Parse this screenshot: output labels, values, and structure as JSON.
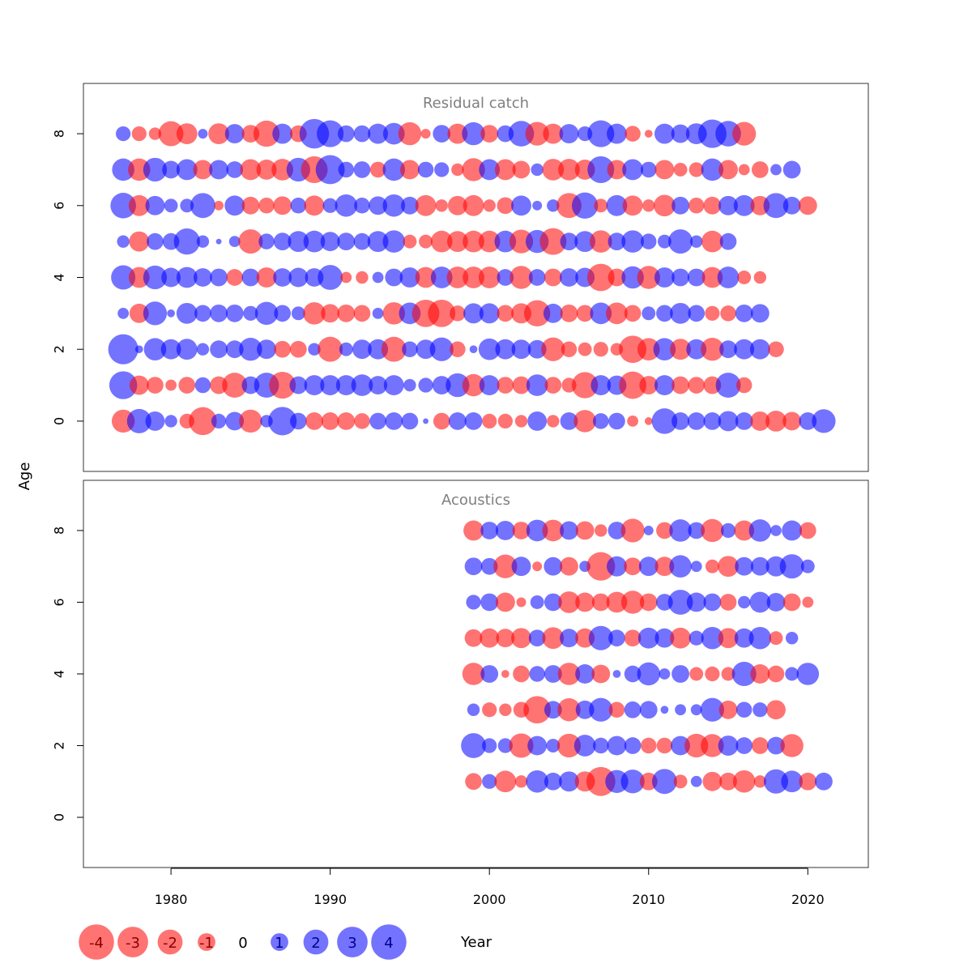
{
  "chart_data": {
    "type": "bubble",
    "ylabel": "Age",
    "xlabel": "Year",
    "x_ticks": [
      1980,
      1990,
      2000,
      2010,
      2020
    ],
    "y_ticks": [
      0,
      2,
      4,
      6,
      8
    ],
    "xlim": [
      1974.5,
      2023.8
    ],
    "ylim": [
      -1.4,
      9.4
    ],
    "colors": {
      "positive": "#0000ff",
      "negative": "#ff0000",
      "border": "#333333"
    },
    "panels": [
      {
        "title": "Residual catch",
        "year_start": 1977,
        "ages": [
          0,
          1,
          2,
          3,
          4,
          5,
          6,
          7,
          8
        ],
        "residuals": [
          [
            -1.7,
            1.9,
            1.2,
            0.5,
            -0.7,
            -2.5,
            0.7,
            1.1,
            -1.7,
            0.5,
            2.6,
            0.9,
            -1.0,
            -1.0,
            -1.0,
            -0.8,
            0.9,
            1.0,
            0.9,
            0.1,
            -0.9,
            1.0,
            1.0,
            -0.7,
            -0.7,
            -0.5,
            1.2,
            -0.5,
            1.0,
            -1.6,
            0.8,
            0.9,
            -0.4,
            -0.2,
            2.1,
            1.0,
            1.0,
            1.0,
            1.3,
            1.0,
            -1.2,
            -1.4,
            -1.1,
            1.0,
            1.8
          ],
          [
            2.5,
            -1.2,
            -0.9,
            -0.4,
            -0.9,
            0.8,
            -1.0,
            -2.0,
            1.0,
            2.0,
            -2.3,
            1.0,
            1.3,
            1.3,
            1.3,
            1.5,
            1.1,
            1.3,
            0.5,
            0.7,
            1.1,
            1.8,
            -1.6,
            1.3,
            -0.9,
            -1.0,
            1.5,
            -0.9,
            -0.7,
            -2.2,
            1.3,
            1.2,
            -2.4,
            -1.1,
            1.3,
            -1.0,
            -0.9,
            -1.0,
            2.0,
            -0.8
          ],
          [
            2.9,
            0.2,
            1.6,
            1.3,
            1.4,
            0.5,
            1.0,
            1.0,
            1.7,
            1.2,
            -0.9,
            -0.9,
            0.5,
            -2.0,
            0.6,
            1.2,
            1.3,
            -2.0,
            0.8,
            1.2,
            1.8,
            -0.8,
            0.2,
            1.5,
            1.3,
            1.2,
            1.1,
            -1.8,
            -0.8,
            -0.6,
            -0.7,
            -0.5,
            -2.4,
            -1.6,
            1.6,
            -1.4,
            1.3,
            -1.7,
            1.0,
            1.3,
            1.3,
            -0.8
          ],
          [
            0.4,
            -1.2,
            1.8,
            0.2,
            1.4,
            0.9,
            1.0,
            1.0,
            0.7,
            1.7,
            0.9,
            0.6,
            -1.6,
            -1.1,
            -1.0,
            -0.9,
            0.4,
            -1.6,
            1.5,
            -2.4,
            -2.4,
            -0.8,
            1.3,
            1.3,
            -0.9,
            -1.3,
            -2.2,
            1.2,
            -1.0,
            -0.9,
            1.5,
            -1.5,
            -0.9,
            0.6,
            0.9,
            1.4,
            0.9,
            -0.7,
            -0.8,
            1.0,
            1.1
          ],
          [
            1.9,
            -1.4,
            1.8,
            1.2,
            1.4,
            1.1,
            1.0,
            -0.9,
            1.0,
            -1.3,
            1.1,
            1.2,
            1.1,
            2.0,
            -0.4,
            -0.5,
            0.4,
            1.0,
            1.3,
            -1.4,
            1.5,
            -1.5,
            -1.5,
            -1.5,
            0.9,
            -1.7,
            0.9,
            -1.0,
            1.1,
            1.2,
            -2.4,
            -1.0,
            1.6,
            -1.7,
            1.3,
            1.0,
            1.0,
            -1.4,
            1.5,
            -0.6,
            -0.5
          ],
          [
            0.5,
            -1.3,
            0.9,
            0.9,
            2.2,
            0.5,
            0.1,
            0.4,
            -1.9,
            0.8,
            1.0,
            1.4,
            1.5,
            1.2,
            1.0,
            0.9,
            1.4,
            1.6,
            -0.6,
            -0.6,
            -1.5,
            -1.4,
            -1.5,
            -1.5,
            1.5,
            -1.8,
            1.7,
            -2.3,
            1.0,
            1.4,
            -1.6,
            1.0,
            1.6,
            0.8,
            0.6,
            1.9,
            0.5,
            -1.5,
            0.9
          ],
          [
            2.1,
            -1.4,
            1.2,
            0.6,
            0.6,
            2.0,
            -0.3,
            1.3,
            -1.0,
            -0.8,
            -1.1,
            0.8,
            -1.3,
            0.7,
            1.6,
            0.8,
            1.1,
            1.6,
            1.0,
            -1.4,
            -0.5,
            -1.2,
            -1.4,
            -0.5,
            -0.9,
            1.3,
            0.3,
            0.5,
            -2.0,
            2.2,
            -0.6,
            1.4,
            -1.3,
            -0.5,
            -1.5,
            1.0,
            -0.8,
            -1.0,
            1.2,
            1.4,
            -1.2,
            2.0,
            1.0,
            -1.1
          ],
          [
            1.6,
            -1.6,
            1.8,
            1.0,
            1.4,
            -1.2,
            1.2,
            0.9,
            -1.4,
            -1.3,
            -1.5,
            1.8,
            -2.3,
            2.7,
            0.8,
            0.9,
            -0.8,
            1.6,
            -1.2,
            0.8,
            0.7,
            -0.5,
            -1.7,
            1.4,
            -1.4,
            -1.0,
            0.5,
            -1.5,
            -1.5,
            -1.3,
            2.3,
            -1.2,
            1.4,
            0.8,
            -1.2,
            -0.6,
            -0.7,
            1.6,
            -1.2,
            -0.4,
            -0.9,
            0.4,
            1.0
          ],
          [
            0.7,
            -0.7,
            -0.5,
            -2.0,
            -1.4,
            0.3,
            -1.4,
            1.2,
            -1.0,
            -2.2,
            1.3,
            -0.9,
            2.8,
            2.3,
            0.9,
            0.9,
            1.3,
            1.5,
            -1.7,
            -0.3,
            1.0,
            -1.3,
            1.7,
            -1.0,
            0.9,
            2.1,
            -1.8,
            -1.3,
            1.2,
            0.7,
            2.3,
            1.3,
            -0.8,
            -0.2,
            1.3,
            1.1,
            1.4,
            2.6,
            2.1,
            -1.8
          ]
        ]
      },
      {
        "title": "Acoustics",
        "year_start": 1999,
        "ages": [
          1,
          2,
          3,
          4,
          5,
          6,
          7,
          8
        ],
        "residuals": [
          [
            -0.9,
            0.7,
            -1.5,
            -0.5,
            1.6,
            1.0,
            1.3,
            -1.3,
            -2.7,
            1.7,
            1.8,
            -1.0,
            2.0,
            -0.6,
            0.4,
            -1.2,
            -1.0,
            -1.6,
            -0.5,
            1.9,
            1.5,
            -1.0,
            1.0
          ],
          [
            2.0,
            0.7,
            0.7,
            -1.9,
            1.2,
            0.6,
            -1.8,
            1.5,
            0.8,
            1.2,
            0.9,
            -0.8,
            -0.8,
            1.2,
            -1.8,
            -1.7,
            1.3,
            0.9,
            -0.9,
            1.0,
            -1.7
          ],
          [
            0.5,
            -0.7,
            -0.5,
            -0.8,
            -2.4,
            1.0,
            -1.7,
            1.1,
            1.8,
            -0.8,
            0.9,
            1.0,
            0.2,
            0.4,
            0.4,
            1.8,
            -1.1,
            0.8,
            0.7,
            -1.2
          ],
          [
            -1.6,
            1.0,
            -0.2,
            -0.9,
            0.8,
            1.0,
            -1.6,
            1.2,
            -1.1,
            0.2,
            0.9,
            1.7,
            0.4,
            1.0,
            -0.6,
            -0.7,
            -0.6,
            1.9,
            -1.2,
            -0.9,
            0.6,
            1.6
          ],
          [
            -1.0,
            -1.2,
            -1.1,
            -1.3,
            0.9,
            -1.5,
            1.1,
            -1.2,
            1.9,
            0.9,
            -0.9,
            1.4,
            1.2,
            -1.4,
            0.7,
            1.6,
            -1.3,
            1.2,
            1.6,
            -0.6,
            0.5
          ],
          [
            0.7,
            1.0,
            -1.2,
            -0.3,
            0.6,
            1.0,
            -1.5,
            -1.2,
            -1.0,
            -1.4,
            -1.7,
            -1.0,
            0.9,
            2.0,
            1.2,
            1.0,
            -0.9,
            0.5,
            1.4,
            1.1,
            -1.0,
            -0.4
          ],
          [
            1.0,
            0.9,
            -1.8,
            1.2,
            -0.3,
            1.1,
            -1.1,
            0.4,
            -2.6,
            1.3,
            -1.0,
            1.2,
            -1.2,
            1.6,
            0.4,
            -0.6,
            -1.4,
            1.1,
            1.1,
            1.3,
            1.9,
            0.6
          ],
          [
            -1.3,
            1.0,
            1.2,
            -1.0,
            1.5,
            -1.5,
            1.1,
            -1.1,
            -0.5,
            1.0,
            -1.8,
            0.3,
            -0.9,
            1.6,
            0.9,
            -1.7,
            0.7,
            -1.3,
            1.6,
            0.4,
            1.3,
            -0.9
          ]
        ]
      }
    ],
    "legend": {
      "values": [
        -4,
        -3,
        -2,
        -1,
        0,
        1,
        2,
        3,
        4
      ],
      "labels": [
        "-4",
        "-3",
        "-2",
        "-1",
        "0",
        "1",
        "2",
        "3",
        "4"
      ]
    }
  }
}
